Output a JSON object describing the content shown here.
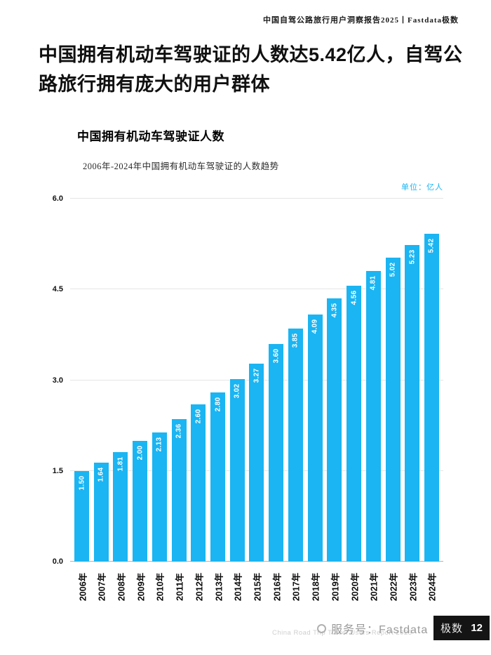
{
  "header": {
    "report_title": "中国自驾公路旅行用户洞察报告2025丨Fastdata极数"
  },
  "main": {
    "headline": "中国拥有机动车驾驶证的人数达5.42亿人，自驾公路旅行拥有庞大的用户群体",
    "chart": {
      "title": "中国拥有机动车驾驶证人数",
      "subtitle": "2006年-2024年中国拥有机动车驾驶证的人数趋势",
      "unit_label": "单位：亿人"
    }
  },
  "chart_data": {
    "type": "bar",
    "title": "中国拥有机动车驾驶证人数",
    "subtitle": "2006年-2024年中国拥有机动车驾驶证的人数趋势",
    "unit": "亿人",
    "categories": [
      "2006年",
      "2007年",
      "2008年",
      "2009年",
      "2010年",
      "2011年",
      "2012年",
      "2013年",
      "2014年",
      "2015年",
      "2016年",
      "2017年",
      "2018年",
      "2019年",
      "2020年",
      "2021年",
      "2022年",
      "2023年",
      "2024年"
    ],
    "values": [
      1.5,
      1.64,
      1.81,
      2.0,
      2.13,
      2.36,
      2.6,
      2.8,
      3.02,
      3.27,
      3.6,
      3.85,
      4.09,
      4.35,
      4.56,
      4.81,
      5.02,
      5.23,
      5.42
    ],
    "value_labels": [
      "1.50",
      "1.64",
      "1.81",
      "2.00",
      "2.13",
      "2.36",
      "2.60",
      "2.80",
      "3.02",
      "3.27",
      "3.60",
      "3.85",
      "4.09",
      "4.35",
      "4.56",
      "4.81",
      "5.02",
      "5.23",
      "5.42"
    ],
    "xlabel": "",
    "ylabel": "亿人",
    "ylim": [
      0,
      6
    ],
    "yticks": [
      "0.0",
      "1.5",
      "3.0",
      "4.5",
      "6.0"
    ],
    "grid": true,
    "legend": "none",
    "bar_color": "#1ab5f2",
    "value_label_color": "#ffffff",
    "accent_color": "#1ab5f2"
  },
  "footer": {
    "watermark": "China Road Trip Travel Users Report 2025",
    "account_label_gray": "服务号：Fastdata",
    "account_label_on_dark": "极数",
    "page_number": "12"
  }
}
